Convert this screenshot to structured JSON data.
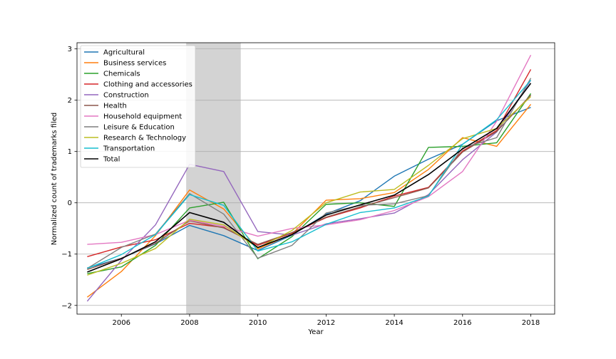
{
  "chart_data": {
    "type": "line",
    "title": "",
    "xlabel": "Year",
    "ylabel": "Normalized count of trademarks filed",
    "xlim": [
      2004.7,
      2018.7
    ],
    "ylim": [
      -2.17,
      3.12
    ],
    "x_ticks": [
      2006,
      2008,
      2010,
      2012,
      2014,
      2016,
      2018
    ],
    "y_ticks": [
      -2,
      -1,
      0,
      1,
      2,
      3
    ],
    "y_tick_labels": [
      "−2",
      "−1",
      "0",
      "1",
      "2",
      "3"
    ],
    "grid": "horizontal",
    "legend_position": "top-left",
    "shaded_region": {
      "x_start": 2007.9,
      "x_end": 2009.5,
      "color": "#d3d3d3"
    },
    "x": [
      2005,
      2006,
      2007,
      2008,
      2009,
      2010,
      2011,
      2012,
      2013,
      2014,
      2015,
      2016,
      2017,
      2018
    ],
    "series": [
      {
        "name": "Agricultural",
        "color": "#1f77b4",
        "values": [
          -1.27,
          -1.08,
          -0.8,
          -0.44,
          -0.64,
          -0.93,
          -0.63,
          -0.22,
          0.04,
          0.52,
          0.85,
          1.14,
          1.6,
          1.86
        ]
      },
      {
        "name": "Business services",
        "color": "#ff7f0e",
        "values": [
          -1.84,
          -1.34,
          -0.64,
          0.25,
          -0.12,
          -0.9,
          -0.61,
          0.05,
          0.08,
          0.2,
          0.65,
          1.27,
          1.1,
          1.92
        ]
      },
      {
        "name": "Chemicals",
        "color": "#2ca02c",
        "values": [
          -1.38,
          -1.25,
          -0.83,
          -0.1,
          0.01,
          -1.09,
          -0.66,
          -0.03,
          0.0,
          -0.07,
          1.08,
          1.1,
          1.17,
          2.13
        ]
      },
      {
        "name": "Clothing and accessories",
        "color": "#d62728",
        "values": [
          -1.05,
          -0.86,
          -0.72,
          -0.4,
          -0.48,
          -0.83,
          -0.59,
          -0.29,
          -0.1,
          0.13,
          0.3,
          1.01,
          1.41,
          2.6
        ]
      },
      {
        "name": "Construction",
        "color": "#9467bd",
        "values": [
          -1.92,
          -1.12,
          -0.43,
          0.75,
          0.61,
          -0.56,
          -0.63,
          -0.41,
          -0.31,
          -0.2,
          0.16,
          0.84,
          1.38,
          2.39
        ]
      },
      {
        "name": "Health",
        "color": "#8c564b",
        "values": [
          -1.3,
          -1.08,
          -0.79,
          -0.35,
          -0.49,
          -0.81,
          -0.58,
          -0.28,
          -0.08,
          0.1,
          0.29,
          0.99,
          1.39,
          2.1
        ]
      },
      {
        "name": "Household equipment",
        "color": "#e377c2",
        "values": [
          -0.81,
          -0.77,
          -0.62,
          -0.34,
          -0.46,
          -0.65,
          -0.5,
          -0.43,
          -0.33,
          -0.15,
          0.12,
          0.61,
          1.59,
          2.88
        ]
      },
      {
        "name": "Leisure & Education",
        "color": "#7f7f7f",
        "values": [
          -1.28,
          -0.87,
          -0.61,
          0.18,
          -0.22,
          -1.08,
          -0.83,
          -0.2,
          -0.05,
          -0.02,
          0.14,
          1.07,
          1.27,
          2.43
        ]
      },
      {
        "name": "Research & Technology",
        "color": "#bcbd22",
        "values": [
          -1.41,
          -1.18,
          -0.89,
          -0.32,
          -0.43,
          -0.88,
          -0.54,
          0.0,
          0.21,
          0.26,
          0.73,
          1.25,
          1.45,
          2.07
        ]
      },
      {
        "name": "Transportation",
        "color": "#17becf",
        "values": [
          -1.28,
          -1.01,
          -0.62,
          0.16,
          -0.05,
          -0.94,
          -0.76,
          -0.42,
          -0.19,
          -0.1,
          0.13,
          1.14,
          1.62,
          2.39
        ]
      },
      {
        "name": "Total",
        "color": "#000000",
        "values": [
          -1.35,
          -1.09,
          -0.76,
          -0.19,
          -0.38,
          -0.87,
          -0.62,
          -0.24,
          -0.04,
          0.15,
          0.55,
          1.05,
          1.45,
          2.33
        ]
      }
    ]
  }
}
